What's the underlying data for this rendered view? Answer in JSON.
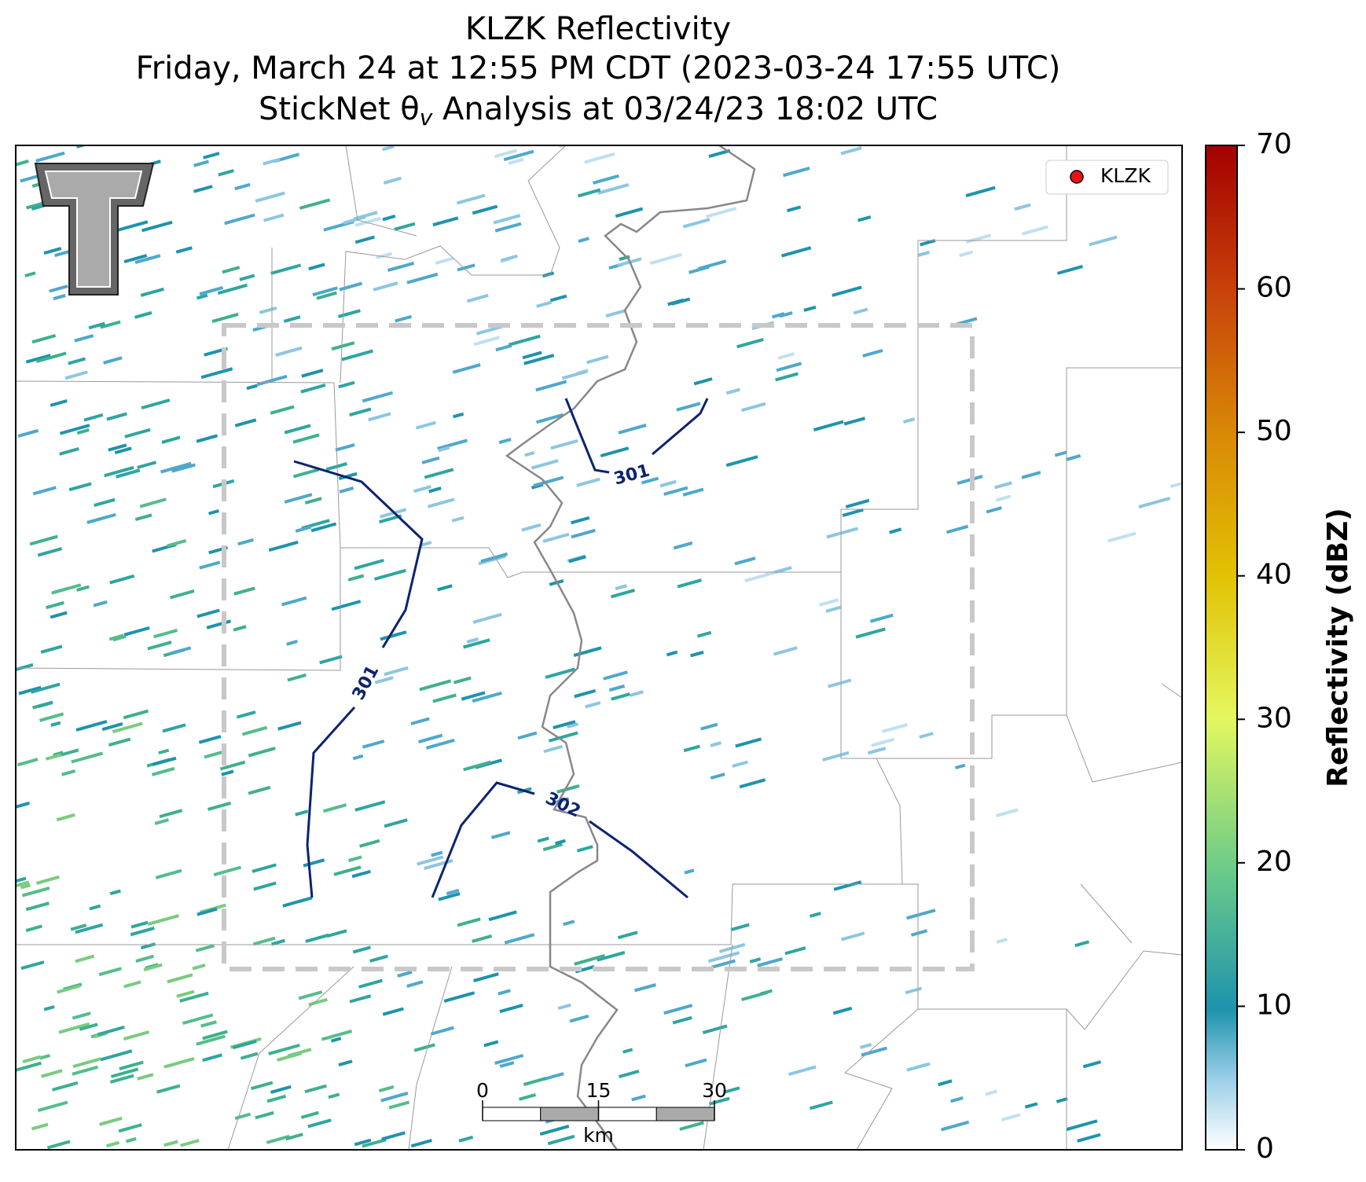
{
  "title": {
    "line1": "KLZK Reflectivity",
    "line2": "Friday, March 24 at 12:55 PM CDT (2023-03-24 17:55 UTC)",
    "line3_before": "StickNet θ",
    "line3_sub": "v",
    "line3_after": " Analysis at 03/24/23 18:02 UTC"
  },
  "legend": {
    "label": "KLZK",
    "color": "#ee1111"
  },
  "colorbar": {
    "label": "Reflectivity (dBZ)",
    "lim": [
      0,
      70
    ],
    "ticks": [
      0,
      10,
      20,
      30,
      40,
      50,
      60,
      70
    ]
  },
  "contours": [
    {
      "label": "301"
    },
    {
      "label": "301"
    },
    {
      "label": "302"
    }
  ],
  "scale_bar": {
    "lim": [
      0,
      30
    ],
    "ticks": [
      0,
      15,
      30
    ],
    "unit": "km"
  }
}
